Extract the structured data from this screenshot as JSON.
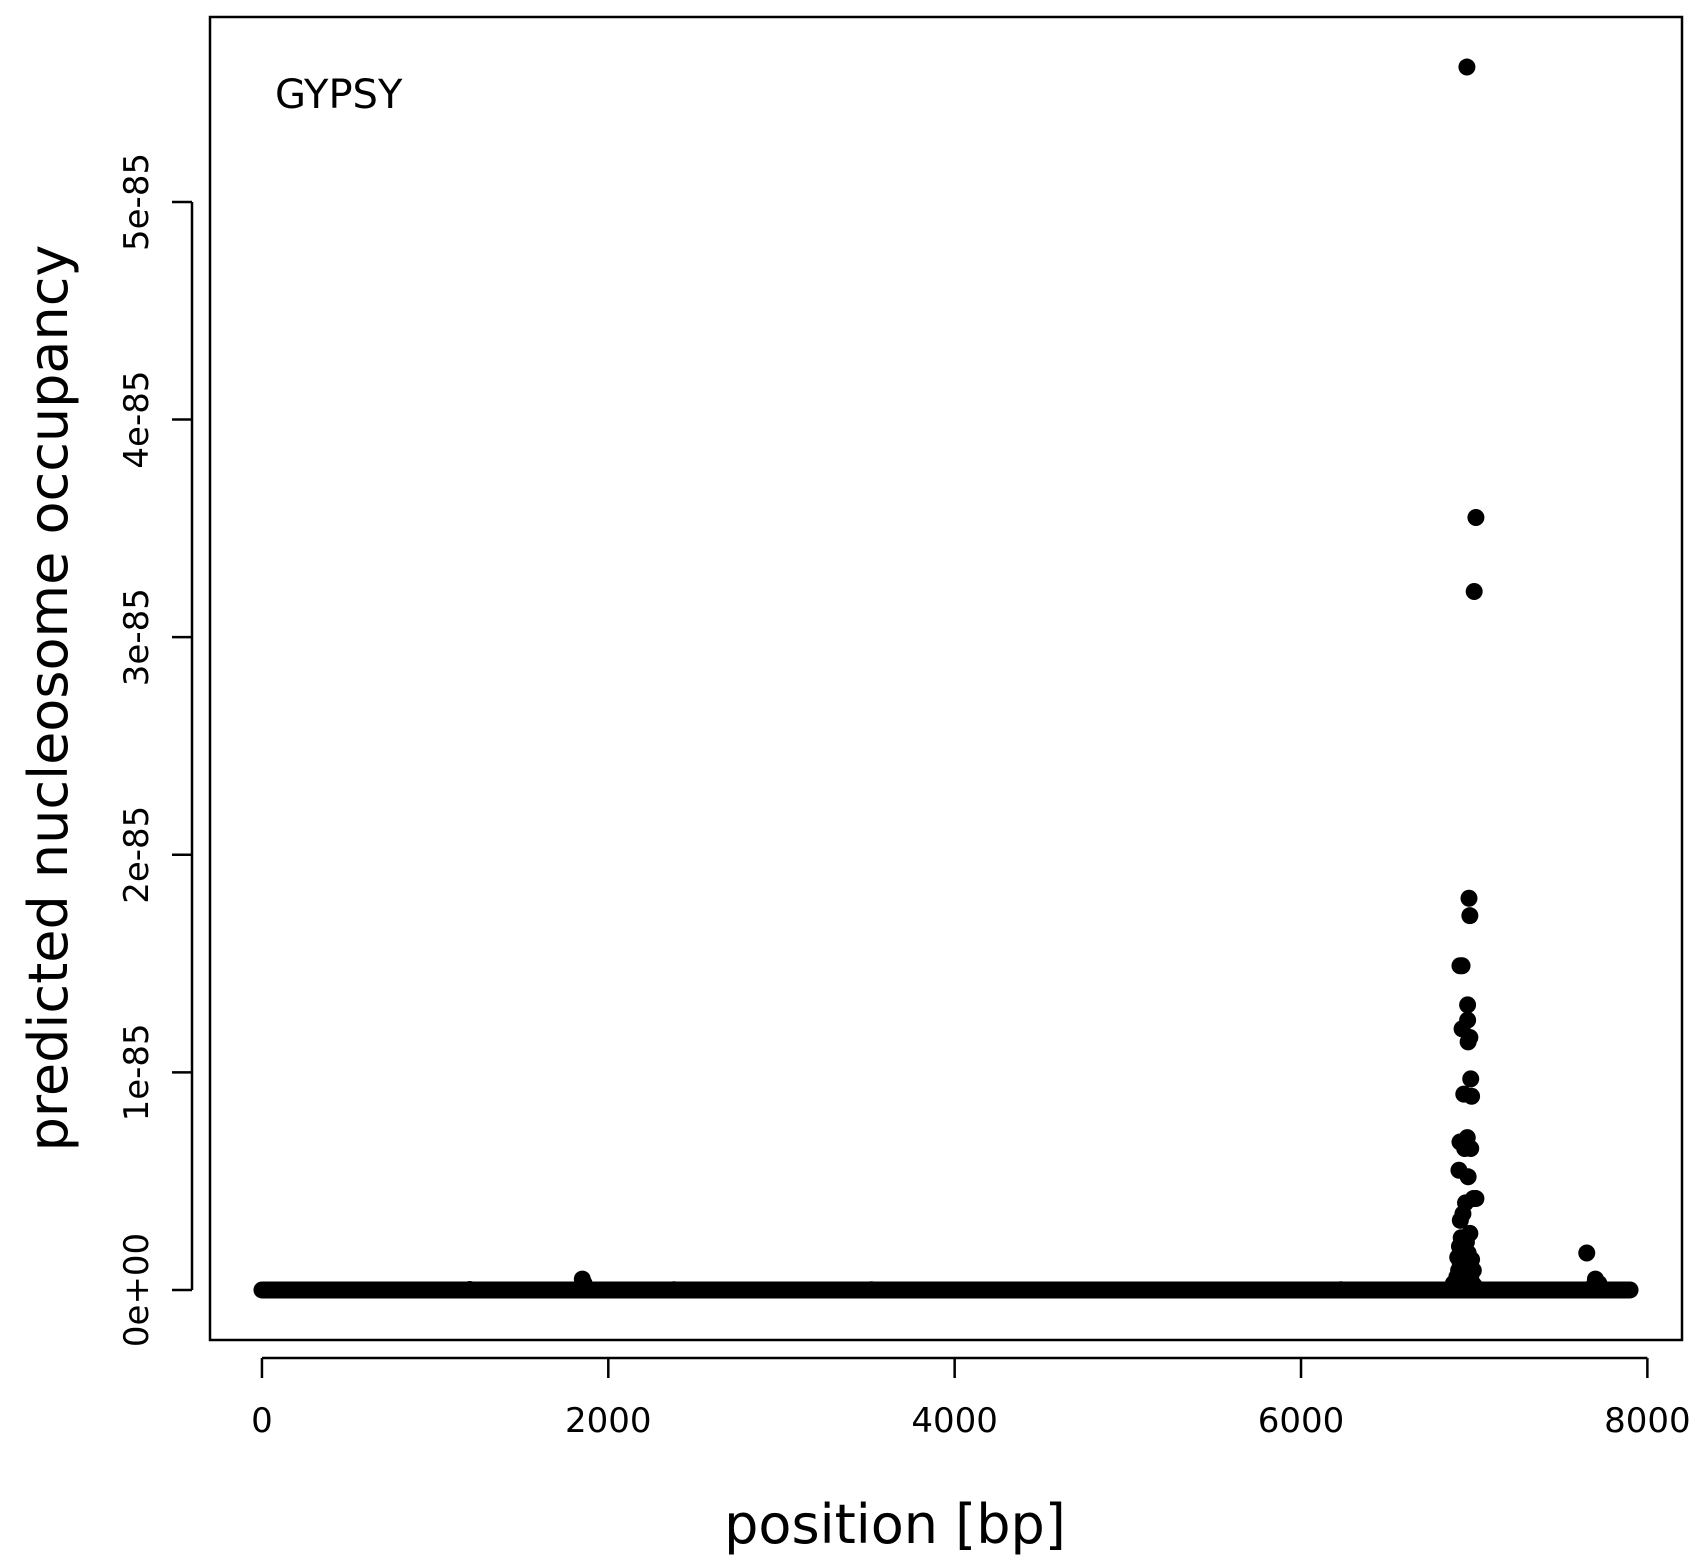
{
  "chart_data": {
    "type": "scatter",
    "title": "",
    "annotation": "GYPSY",
    "xlabel": "position [bp]",
    "ylabel": "predicted nucleosome occupancy",
    "xlim": [
      -300,
      8200
    ],
    "ylim": [
      -2.3e-86,
      5.85e-85
    ],
    "x_ticks": [
      0,
      2000,
      4000,
      6000,
      8000
    ],
    "x_tick_labels": [
      "0",
      "2000",
      "4000",
      "6000",
      "8000"
    ],
    "y_ticks": [
      0,
      1e-85,
      2e-85,
      3e-85,
      4e-85,
      5e-85
    ],
    "y_tick_labels": [
      "0e+00",
      "1e-85",
      "2e-85",
      "3e-85",
      "4e-85",
      "5e-85"
    ],
    "grid": false,
    "marker_color": "#000000",
    "baseline": {
      "x_from": 0,
      "x_to": 7900,
      "y": 0
    },
    "series": [
      {
        "x": [
          1200,
          1850,
          1860,
          2380,
          3520,
          6230,
          7650,
          7700,
          7720,
          7690,
          6880,
          6900,
          6910,
          6920,
          6930,
          6940,
          6950,
          6960,
          6970,
          6980,
          6990,
          7000,
          7010,
          6905,
          6915,
          6925,
          6935,
          6945,
          6955,
          6965,
          6975,
          6985,
          6995,
          6920,
          6935,
          6950,
          6965,
          6980,
          6995,
          7010,
          6912,
          6960,
          6918,
          6945,
          6940,
          6980,
          6985,
          6965,
          6975,
          6918,
          6930,
          6930,
          6962,
          6962,
          6975,
          6970,
          7000,
          7010,
          6958,
          6950
        ],
        "y": [
          2e-88,
          5e-87,
          3e-87,
          1e-88,
          1e-88,
          1e-88,
          1.7e-86,
          5e-87,
          3e-87,
          2e-87,
          3e-87,
          6e-87,
          9e-87,
          1.2e-86,
          8e-87,
          5e-87,
          1e-86,
          7e-87,
          4e-87,
          6e-87,
          3e-87,
          2e-87,
          1e-87,
          1.5e-86,
          2e-86,
          2.4e-86,
          1.8e-86,
          1.3e-86,
          2.2e-86,
          1.7e-86,
          2.6e-86,
          1.4e-86,
          9e-87,
          3.2e-86,
          3.5e-86,
          4e-86,
          5.2e-86,
          6.5e-86,
          4.2e-86,
          4.2e-86,
          5.5e-86,
          7e-86,
          6.8e-86,
          6.5e-86,
          9e-86,
          9.7e-86,
          8.9e-86,
          1.14e-85,
          1.16e-85,
          1.49e-85,
          1.49e-85,
          1.2e-85,
          1.31e-85,
          1.24e-85,
          1.72e-85,
          1.8e-85,
          3.21e-85,
          3.55e-85,
          5.62e-85,
          2e-87
        ]
      }
    ]
  }
}
